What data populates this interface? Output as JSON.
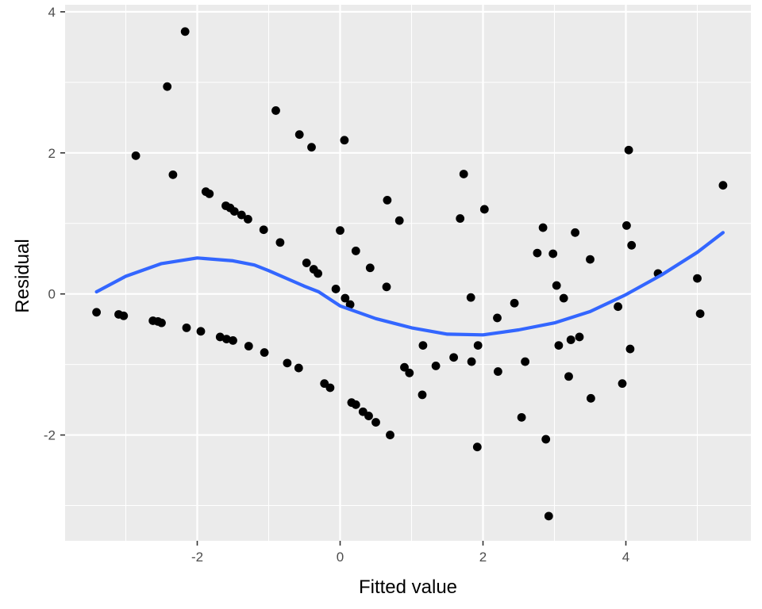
{
  "chart_data": {
    "type": "scatter",
    "title": "",
    "xlabel": "Fitted value",
    "ylabel": "Residual",
    "xlim": [
      -3.85,
      5.75
    ],
    "ylim": [
      -3.5,
      4.1
    ],
    "x_ticks": [
      -2,
      0,
      2,
      4
    ],
    "y_ticks": [
      -2,
      0,
      2,
      4
    ],
    "x_tick_labels": [
      "-2",
      "0",
      "2",
      "4"
    ],
    "y_tick_labels": [
      "-2",
      "0",
      "2",
      "4"
    ],
    "grid": true,
    "background": "#ebebeb",
    "point_color": "#000000",
    "smooth_color": "#3366ff",
    "series": [
      {
        "kind": "points",
        "points": [
          [
            -3.41,
            -0.26
          ],
          [
            -3.1,
            -0.29
          ],
          [
            -3.03,
            -0.31
          ],
          [
            -2.86,
            1.96
          ],
          [
            -2.62,
            -0.38
          ],
          [
            -2.55,
            -0.39
          ],
          [
            -2.5,
            -0.41
          ],
          [
            -2.42,
            2.94
          ],
          [
            -2.34,
            1.69
          ],
          [
            -2.17,
            3.72
          ],
          [
            -2.15,
            -0.48
          ],
          [
            -1.95,
            -0.53
          ],
          [
            -1.88,
            1.45
          ],
          [
            -1.83,
            1.42
          ],
          [
            -1.68,
            -0.61
          ],
          [
            -1.6,
            1.25
          ],
          [
            -1.59,
            -0.64
          ],
          [
            -1.54,
            1.22
          ],
          [
            -1.5,
            -0.66
          ],
          [
            -1.48,
            1.17
          ],
          [
            -1.38,
            1.12
          ],
          [
            -1.29,
            1.06
          ],
          [
            -1.28,
            -0.74
          ],
          [
            -1.07,
            0.91
          ],
          [
            -1.06,
            -0.83
          ],
          [
            -0.9,
            2.6
          ],
          [
            -0.84,
            0.73
          ],
          [
            -0.74,
            -0.98
          ],
          [
            -0.57,
            2.26
          ],
          [
            -0.58,
            -1.05
          ],
          [
            -0.47,
            0.44
          ],
          [
            -0.4,
            2.08
          ],
          [
            -0.37,
            0.35
          ],
          [
            -0.31,
            0.29
          ],
          [
            -0.22,
            -1.27
          ],
          [
            -0.14,
            -1.33
          ],
          [
            -0.06,
            0.07
          ],
          [
            0.0,
            0.9
          ],
          [
            0.06,
            2.18
          ],
          [
            0.07,
            -0.06
          ],
          [
            0.14,
            -0.15
          ],
          [
            0.16,
            -1.54
          ],
          [
            0.22,
            0.61
          ],
          [
            0.22,
            -1.57
          ],
          [
            0.32,
            -1.67
          ],
          [
            0.4,
            -1.73
          ],
          [
            0.42,
            0.37
          ],
          [
            0.5,
            -1.82
          ],
          [
            0.65,
            0.1
          ],
          [
            0.66,
            1.33
          ],
          [
            0.7,
            -2.0
          ],
          [
            0.83,
            1.04
          ],
          [
            0.9,
            -1.04
          ],
          [
            0.97,
            -1.12
          ],
          [
            1.16,
            -0.73
          ],
          [
            1.15,
            -1.43
          ],
          [
            1.34,
            -1.02
          ],
          [
            1.59,
            -0.9
          ],
          [
            1.68,
            1.07
          ],
          [
            1.73,
            1.7
          ],
          [
            1.83,
            -0.05
          ],
          [
            1.84,
            -0.96
          ],
          [
            1.93,
            -0.73
          ],
          [
            1.92,
            -2.17
          ],
          [
            2.02,
            1.2
          ],
          [
            2.2,
            -0.34
          ],
          [
            2.21,
            -1.1
          ],
          [
            2.44,
            -0.13
          ],
          [
            2.54,
            -1.75
          ],
          [
            2.59,
            -0.96
          ],
          [
            2.76,
            0.58
          ],
          [
            2.84,
            0.94
          ],
          [
            2.88,
            -2.06
          ],
          [
            2.92,
            -3.15
          ],
          [
            2.98,
            0.57
          ],
          [
            3.03,
            0.12
          ],
          [
            3.06,
            -0.73
          ],
          [
            3.13,
            -0.06
          ],
          [
            3.2,
            -1.17
          ],
          [
            3.23,
            -0.65
          ],
          [
            3.29,
            0.87
          ],
          [
            3.35,
            -0.61
          ],
          [
            3.5,
            0.49
          ],
          [
            3.51,
            -1.48
          ],
          [
            3.89,
            -0.18
          ],
          [
            3.95,
            -1.27
          ],
          [
            4.01,
            0.97
          ],
          [
            4.04,
            2.04
          ],
          [
            4.06,
            -0.78
          ],
          [
            4.08,
            0.69
          ],
          [
            4.45,
            0.29
          ],
          [
            5.0,
            0.22
          ],
          [
            5.04,
            -0.28
          ],
          [
            5.36,
            1.54
          ]
        ]
      },
      {
        "kind": "smooth",
        "points": [
          [
            -3.41,
            0.03
          ],
          [
            -3.0,
            0.25
          ],
          [
            -2.5,
            0.43
          ],
          [
            -2.0,
            0.51
          ],
          [
            -1.5,
            0.47
          ],
          [
            -1.2,
            0.41
          ],
          [
            -1.0,
            0.33
          ],
          [
            -0.5,
            0.11
          ],
          [
            -0.3,
            0.03
          ],
          [
            0.0,
            -0.17
          ],
          [
            0.5,
            -0.35
          ],
          [
            1.0,
            -0.48
          ],
          [
            1.5,
            -0.57
          ],
          [
            2.0,
            -0.58
          ],
          [
            2.5,
            -0.51
          ],
          [
            3.0,
            -0.41
          ],
          [
            3.5,
            -0.25
          ],
          [
            4.0,
            -0.01
          ],
          [
            4.5,
            0.27
          ],
          [
            5.0,
            0.59
          ],
          [
            5.36,
            0.87
          ]
        ]
      }
    ]
  }
}
